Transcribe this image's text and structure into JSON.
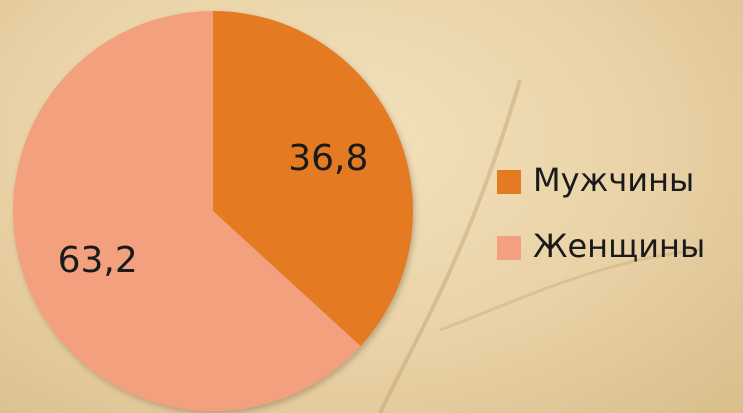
{
  "chart_data": {
    "type": "pie",
    "categories": [
      "Мужчины",
      "Женщины"
    ],
    "values": [
      36.8,
      63.2
    ],
    "value_labels": [
      "36,8",
      "63,2"
    ],
    "colors": [
      "#e47a22",
      "#f2a07e"
    ]
  }
}
